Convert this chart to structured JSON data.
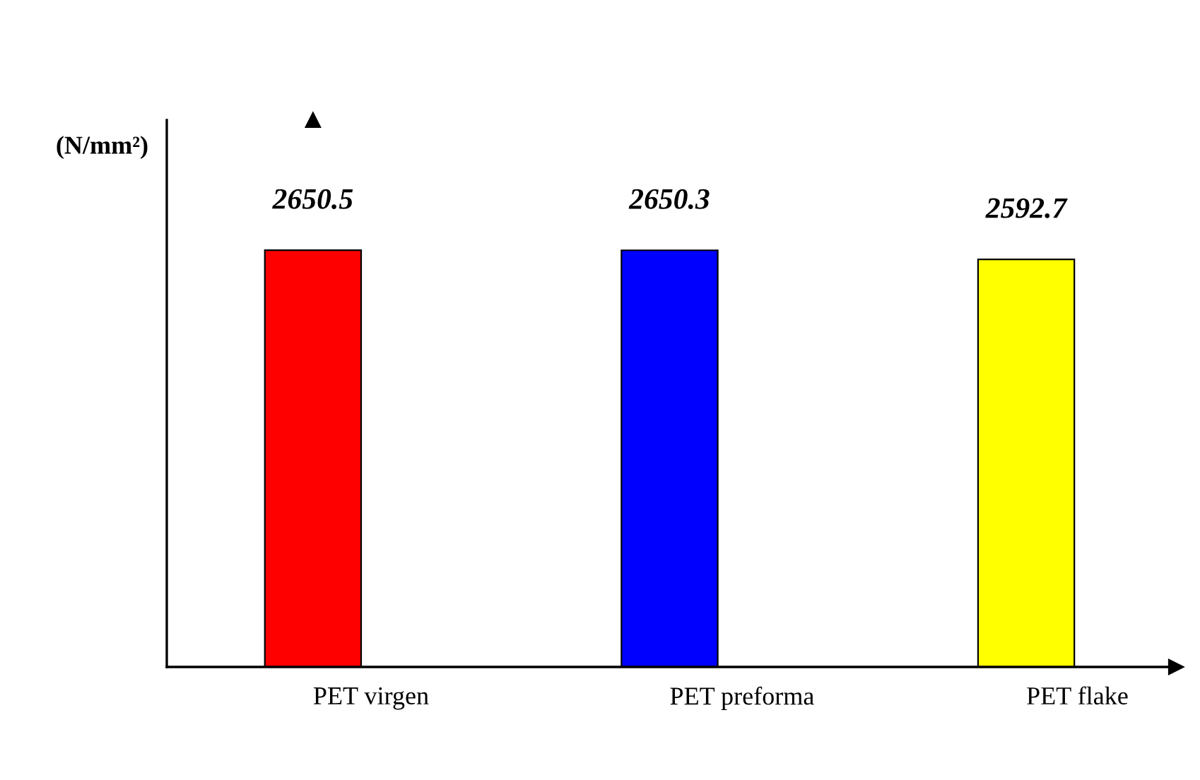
{
  "chart_data": {
    "type": "bar",
    "ylabel": "(N/mm²)",
    "categories": [
      "PET virgen",
      "PET preforma",
      "PET flake"
    ],
    "values": [
      2650.5,
      2650.3,
      2592.7
    ],
    "colors": [
      "#ff0000",
      "#0000ff",
      "#ffff00"
    ],
    "data_labels": true,
    "grid": false,
    "tick_labels": "x"
  }
}
